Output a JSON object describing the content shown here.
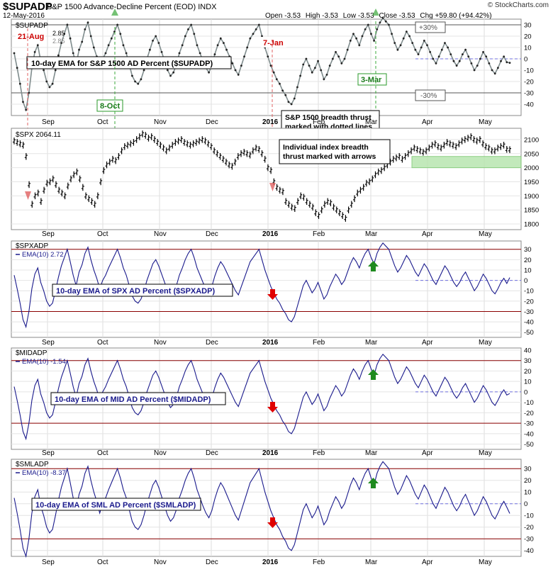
{
  "header": {
    "symbol": "$SUPADP",
    "description": "S&P 1500 Advance-Decline Percent (EOD)",
    "exchange": "INDX",
    "date": "12-May-2016",
    "open": "Open -3.53",
    "high": "High -3.53",
    "low": "Low -3.53",
    "close": "Close -3.53",
    "chg": "Chg +59.80 (+94.42%)",
    "brand": "© StockCharts.com"
  },
  "x_axis": {
    "labels": [
      "Sep",
      "Oct",
      "Nov",
      "Dec",
      "2016",
      "Feb",
      "Mar",
      "Apr",
      "May"
    ]
  },
  "chart_data": [
    {
      "type": "line",
      "name": "supadp-panel",
      "legend": "$SUPADP",
      "legend_values": [
        "2.85",
        "2.85"
      ],
      "ylim": [
        -50,
        35
      ],
      "yticks": [
        -40,
        -30,
        -20,
        -10,
        0,
        10,
        20,
        30
      ],
      "reference_lines": [
        30,
        -30
      ],
      "series": [
        {
          "values": [
            5,
            -8,
            -22,
            -38,
            -45,
            -30,
            -8,
            6,
            12,
            -2,
            -10,
            -20,
            -25,
            -22,
            -10,
            3,
            14,
            22,
            30,
            18,
            5,
            -5,
            8,
            15,
            26,
            32,
            20,
            10,
            2,
            -8,
            0,
            5,
            12,
            18,
            24,
            30,
            22,
            12,
            5,
            -5,
            -15,
            -20,
            -22,
            -18,
            -10,
            0,
            8,
            16,
            20,
            14,
            6,
            -2,
            -10,
            -15,
            -12,
            -5,
            5,
            12,
            20,
            26,
            30,
            22,
            12,
            5,
            -2,
            -8,
            -12,
            -6,
            4,
            12,
            18,
            14,
            8,
            2,
            -4,
            -10,
            -14,
            -6,
            2,
            10,
            18,
            22,
            26,
            30,
            20,
            10,
            2,
            -6,
            -12,
            -18,
            -22,
            -28,
            -32,
            -38,
            -40,
            -35,
            -25,
            -15,
            -5,
            0,
            -6,
            -12,
            -8,
            -2,
            -10,
            -18,
            -14,
            -6,
            0,
            6,
            2,
            -4,
            0,
            8,
            16,
            22,
            18,
            12,
            20,
            26,
            30,
            22,
            16,
            26,
            32,
            36,
            33,
            30,
            22,
            14,
            8,
            12,
            18,
            24,
            20,
            14,
            8,
            4,
            10,
            16,
            12,
            6,
            0,
            -4,
            2,
            8,
            14,
            10,
            4,
            -2,
            -6,
            -2,
            4,
            8,
            2,
            -4,
            -10,
            -6,
            0,
            6,
            2,
            -4,
            -10,
            -13,
            -8,
            -2,
            2,
            -3,
            -3.5
          ]
        }
      ],
      "dashed_ref": 0,
      "annotations": {
        "date1": "21-Aug",
        "date2": "7-Jan",
        "date3": "8-Oct",
        "date4": "3-Mar",
        "plus30": "+30%",
        "minus30": "-30%",
        "ema_note": "10-day EMA for S&P 1500 AD Percent ($SUPADP)",
        "thrust_note_1": "S&P 1500 breadth thrust",
        "thrust_note_2": "marked with dotted lines"
      }
    },
    {
      "type": "ohlc",
      "name": "spx-panel",
      "legend": "$SPX 2064.11",
      "ylim": [
        1780,
        2140
      ],
      "yticks": [
        1800,
        1850,
        1900,
        1950,
        2000,
        2050,
        2100
      ],
      "support_zone": [
        2000,
        2040
      ],
      "series": [
        {
          "values": [
            2095,
            2090,
            2085,
            2080,
            2040,
            1940,
            1870,
            1900,
            1910,
            1880,
            1920,
            1945,
            1950,
            1960,
            1940,
            1920,
            1910,
            1900,
            1935,
            1960,
            1975,
            1985,
            1960,
            1930,
            1900,
            1890,
            1880,
            1870,
            1900,
            1950,
            1990,
            2010,
            2020,
            2030,
            2025,
            2040,
            2060,
            2075,
            2080,
            2085,
            2090,
            2100,
            2110,
            2120,
            2115,
            2105,
            2110,
            2100,
            2090,
            2080,
            2070,
            2060,
            2070,
            2080,
            2090,
            2095,
            2100,
            2090,
            2085,
            2080,
            2085,
            2090,
            2095,
            2100,
            2095,
            2085,
            2075,
            2060,
            2050,
            2040,
            2030,
            2020,
            2010,
            2005,
            2020,
            2040,
            2050,
            2055,
            2050,
            2045,
            2060,
            2070,
            2065,
            2050,
            2030,
            2000,
            1990,
            1950,
            1930,
            1920,
            1915,
            1880,
            1870,
            1860,
            1855,
            1880,
            1900,
            1895,
            1880,
            1870,
            1860,
            1840,
            1830,
            1850,
            1870,
            1880,
            1875,
            1860,
            1850,
            1840,
            1830,
            1820,
            1850,
            1870,
            1890,
            1910,
            1920,
            1930,
            1945,
            1950,
            1960,
            1975,
            1985,
            1990,
            2000,
            2010,
            2020,
            2030,
            2035,
            2040,
            2030,
            2040,
            2050,
            2060,
            2070,
            2065,
            2060,
            2055,
            2060,
            2070,
            2080,
            2085,
            2075,
            2070,
            2080,
            2090,
            2085,
            2080,
            2075,
            2085,
            2095,
            2100,
            2105,
            2110,
            2100,
            2095,
            2100,
            2085,
            2075,
            2070,
            2060,
            2060,
            2070,
            2075,
            2080,
            2065,
            2064
          ]
        }
      ],
      "annotations": {
        "arrow_note_1": "Individual index breadth",
        "arrow_note_2": "thrust marked with arrows"
      }
    },
    {
      "type": "line",
      "name": "spxadp-panel",
      "legend_title": "$SPXADP",
      "legend": "EMA(10) 2.72",
      "ylim": [
        -55,
        38
      ],
      "yticks": [
        -50,
        -40,
        -30,
        -20,
        -10,
        0,
        10,
        20,
        30
      ],
      "reference_lines": [
        30,
        -30
      ],
      "series": [
        {
          "values": [
            5,
            -8,
            -22,
            -38,
            -45,
            -30,
            -8,
            6,
            12,
            -2,
            -10,
            -20,
            -25,
            -22,
            -10,
            3,
            14,
            22,
            30,
            18,
            5,
            -5,
            8,
            15,
            26,
            32,
            20,
            10,
            2,
            -8,
            0,
            5,
            12,
            18,
            24,
            30,
            22,
            12,
            5,
            -5,
            -15,
            -20,
            -22,
            -18,
            -10,
            0,
            8,
            16,
            20,
            14,
            6,
            -2,
            -10,
            -15,
            -12,
            -5,
            5,
            12,
            20,
            26,
            30,
            22,
            12,
            5,
            -2,
            -8,
            -12,
            -6,
            4,
            12,
            18,
            14,
            8,
            2,
            -4,
            -10,
            -14,
            -6,
            2,
            10,
            18,
            22,
            26,
            30,
            20,
            10,
            2,
            -6,
            -12,
            -18,
            -22,
            -28,
            -32,
            -38,
            -40,
            -35,
            -25,
            -15,
            -5,
            0,
            -6,
            -12,
            -8,
            -2,
            -10,
            -18,
            -14,
            -6,
            0,
            6,
            2,
            -4,
            0,
            8,
            16,
            22,
            18,
            12,
            20,
            26,
            30,
            22,
            16,
            26,
            32,
            36,
            33,
            30,
            22,
            14,
            8,
            12,
            18,
            24,
            20,
            14,
            8,
            4,
            10,
            16,
            12,
            6,
            0,
            -4,
            2,
            8,
            14,
            10,
            4,
            -2,
            -6,
            -2,
            4,
            8,
            2,
            -4,
            -10,
            -6,
            0,
            6,
            2,
            -4,
            -10,
            -13,
            -8,
            -2,
            2,
            -3,
            2.72
          ]
        }
      ],
      "dashed_ref": 0,
      "annotations": {
        "note": "10-day EMA of SPX AD Percent ($SPXADP)"
      }
    },
    {
      "type": "line",
      "name": "midadp-panel",
      "legend_title": "$MIDADP",
      "legend": "EMA(10) -1.54",
      "ylim": [
        -55,
        42
      ],
      "yticks": [
        -50,
        -40,
        -30,
        -20,
        -10,
        0,
        10,
        20,
        30,
        40
      ],
      "reference_lines": [
        30,
        -30
      ],
      "series": [
        {
          "values": [
            5,
            -8,
            -22,
            -38,
            -45,
            -30,
            -8,
            6,
            12,
            -2,
            -10,
            -20,
            -25,
            -22,
            -10,
            3,
            14,
            22,
            30,
            18,
            5,
            -5,
            8,
            15,
            26,
            32,
            20,
            10,
            2,
            -8,
            0,
            5,
            12,
            18,
            24,
            30,
            22,
            12,
            5,
            -5,
            -15,
            -20,
            -22,
            -18,
            -10,
            0,
            8,
            16,
            20,
            14,
            6,
            -2,
            -10,
            -15,
            -12,
            -5,
            5,
            12,
            20,
            26,
            30,
            22,
            12,
            5,
            -2,
            -8,
            -12,
            -6,
            4,
            12,
            18,
            14,
            8,
            2,
            -4,
            -10,
            -14,
            -6,
            2,
            10,
            18,
            22,
            26,
            30,
            20,
            10,
            2,
            -6,
            -12,
            -18,
            -22,
            -28,
            -32,
            -38,
            -40,
            -35,
            -25,
            -15,
            -5,
            0,
            -6,
            -12,
            -8,
            -2,
            -10,
            -18,
            -14,
            -6,
            0,
            6,
            2,
            -4,
            0,
            8,
            16,
            22,
            18,
            12,
            20,
            26,
            30,
            22,
            16,
            26,
            32,
            36,
            33,
            30,
            22,
            14,
            8,
            12,
            18,
            24,
            20,
            14,
            8,
            4,
            10,
            16,
            12,
            6,
            0,
            -4,
            2,
            8,
            14,
            10,
            4,
            -2,
            -6,
            -2,
            4,
            8,
            2,
            -4,
            -10,
            -6,
            0,
            6,
            2,
            -4,
            -10,
            -13,
            -8,
            -2,
            2,
            -3,
            -1.54
          ]
        }
      ],
      "dashed_ref": 0,
      "annotations": {
        "note": "10-day EMA of MID AD Percent ($MIDADP)"
      }
    },
    {
      "type": "line",
      "name": "smladp-panel",
      "legend_title": "$SMLADP",
      "legend": "EMA(10) -8.37",
      "ylim": [
        -45,
        38
      ],
      "yticks": [
        -40,
        -30,
        -20,
        -10,
        0,
        10,
        20,
        30
      ],
      "reference_lines": [
        30,
        -30
      ],
      "series": [
        {
          "values": [
            5,
            -8,
            -22,
            -38,
            -45,
            -30,
            -8,
            6,
            12,
            -2,
            -10,
            -20,
            -25,
            -22,
            -10,
            3,
            14,
            22,
            30,
            18,
            5,
            -5,
            8,
            15,
            26,
            32,
            20,
            10,
            2,
            -8,
            0,
            5,
            12,
            18,
            24,
            30,
            22,
            12,
            5,
            -5,
            -15,
            -20,
            -22,
            -18,
            -10,
            0,
            8,
            16,
            20,
            14,
            6,
            -2,
            -10,
            -15,
            -12,
            -5,
            5,
            12,
            20,
            26,
            30,
            22,
            12,
            5,
            -2,
            -8,
            -12,
            -6,
            4,
            12,
            18,
            14,
            8,
            2,
            -4,
            -10,
            -14,
            -6,
            2,
            10,
            18,
            22,
            26,
            30,
            20,
            10,
            2,
            -6,
            -12,
            -18,
            -22,
            -28,
            -32,
            -38,
            -40,
            -35,
            -25,
            -15,
            -5,
            0,
            -6,
            -12,
            -8,
            -2,
            -10,
            -18,
            -14,
            -6,
            0,
            6,
            2,
            -4,
            0,
            8,
            16,
            22,
            18,
            12,
            20,
            26,
            30,
            22,
            16,
            26,
            32,
            36,
            33,
            30,
            22,
            14,
            8,
            12,
            18,
            24,
            20,
            14,
            8,
            4,
            10,
            16,
            12,
            6,
            0,
            -4,
            2,
            8,
            14,
            10,
            4,
            -2,
            -6,
            -2,
            4,
            8,
            2,
            -4,
            -10,
            -6,
            0,
            6,
            2,
            -4,
            -10,
            -13,
            -8,
            -2,
            2,
            -3,
            -8.37
          ]
        }
      ],
      "dashed_ref": 0,
      "annotations": {
        "note": "10-day EMA of SML AD Percent ($SMLADP)"
      }
    }
  ],
  "colors": {
    "line_gray": "#7f8c8d",
    "line_blue": "#1a1a8c",
    "ref_red": "#8b0000",
    "thrust_red": "#e06060",
    "thrust_green": "#3aa83a",
    "arrow_red": "#e00000",
    "arrow_green": "#1e8a1e",
    "support_green": "#b8e6b0",
    "dash_blue": "#7070e0"
  }
}
